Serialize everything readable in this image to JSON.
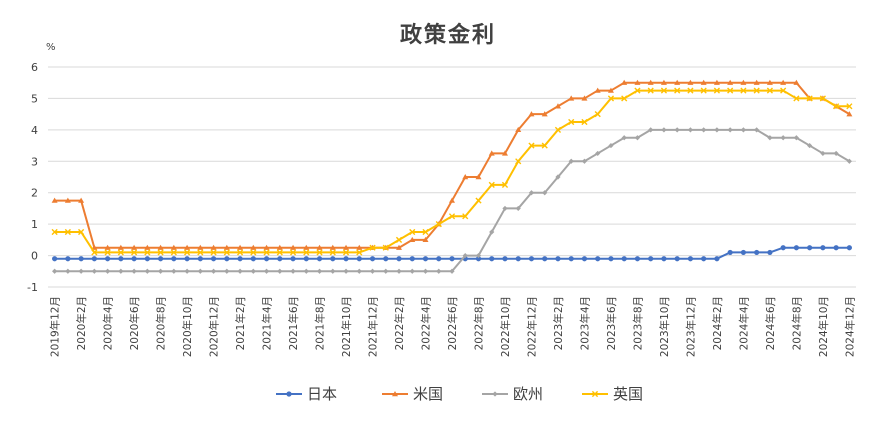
{
  "chart_data": {
    "type": "line",
    "title": "政策金利",
    "unit_label": "%",
    "ylim": [
      -1,
      6
    ],
    "yticks": [
      -1,
      0,
      1,
      2,
      3,
      4,
      5,
      6
    ],
    "grid": "horizontal",
    "legend_position": "bottom",
    "x": [
      "2019年12月",
      "2020年1月",
      "2020年2月",
      "2020年3月",
      "2020年4月",
      "2020年5月",
      "2020年6月",
      "2020年7月",
      "2020年8月",
      "2020年9月",
      "2020年10月",
      "2020年11月",
      "2020年12月",
      "2021年1月",
      "2021年2月",
      "2021年3月",
      "2021年4月",
      "2021年5月",
      "2021年6月",
      "2021年7月",
      "2021年8月",
      "2021年9月",
      "2021年10月",
      "2021年11月",
      "2021年12月",
      "2022年1月",
      "2022年2月",
      "2022年3月",
      "2022年4月",
      "2022年5月",
      "2022年6月",
      "2022年7月",
      "2022年8月",
      "2022年9月",
      "2022年10月",
      "2022年11月",
      "2022年12月",
      "2023年1月",
      "2023年2月",
      "2023年3月",
      "2023年4月",
      "2023年5月",
      "2023年6月",
      "2023年7月",
      "2023年8月",
      "2023年9月",
      "2023年10月",
      "2023年11月",
      "2023年12月",
      "2024年1月",
      "2024年2月",
      "2024年3月",
      "2024年4月",
      "2024年5月",
      "2024年6月",
      "2024年7月",
      "2024年8月",
      "2024年9月",
      "2024年10月",
      "2024年11月",
      "2024年12月"
    ],
    "xtick_labels": [
      "2019年12月",
      "2020年2月",
      "2020年4月",
      "2020年6月",
      "2020年8月",
      "2020年10月",
      "2020年12月",
      "2021年2月",
      "2021年4月",
      "2021年6月",
      "2021年8月",
      "2021年10月",
      "2021年12月",
      "2022年2月",
      "2022年4月",
      "2022年6月",
      "2022年8月",
      "2022年10月",
      "2022年12月",
      "2023年2月",
      "2023年4月",
      "2023年6月",
      "2023年8月",
      "2023年10月",
      "2023年12月",
      "2024年2月",
      "2024年4月",
      "2024年6月",
      "2024年8月",
      "2024年10月",
      "2024年12月"
    ],
    "series": [
      {
        "name": "日本",
        "color": "#4472c4",
        "marker": "circle",
        "values": [
          -0.1,
          -0.1,
          -0.1,
          -0.1,
          -0.1,
          -0.1,
          -0.1,
          -0.1,
          -0.1,
          -0.1,
          -0.1,
          -0.1,
          -0.1,
          -0.1,
          -0.1,
          -0.1,
          -0.1,
          -0.1,
          -0.1,
          -0.1,
          -0.1,
          -0.1,
          -0.1,
          -0.1,
          -0.1,
          -0.1,
          -0.1,
          -0.1,
          -0.1,
          -0.1,
          -0.1,
          -0.1,
          -0.1,
          -0.1,
          -0.1,
          -0.1,
          -0.1,
          -0.1,
          -0.1,
          -0.1,
          -0.1,
          -0.1,
          -0.1,
          -0.1,
          -0.1,
          -0.1,
          -0.1,
          -0.1,
          -0.1,
          -0.1,
          -0.1,
          0.1,
          0.1,
          0.1,
          0.1,
          0.25,
          0.25,
          0.25,
          0.25,
          0.25,
          0.25
        ]
      },
      {
        "name": "米国",
        "color": "#ed7d31",
        "marker": "triangle",
        "values": [
          1.75,
          1.75,
          1.75,
          0.25,
          0.25,
          0.25,
          0.25,
          0.25,
          0.25,
          0.25,
          0.25,
          0.25,
          0.25,
          0.25,
          0.25,
          0.25,
          0.25,
          0.25,
          0.25,
          0.25,
          0.25,
          0.25,
          0.25,
          0.25,
          0.25,
          0.25,
          0.25,
          0.5,
          0.5,
          1.0,
          1.75,
          2.5,
          2.5,
          3.25,
          3.25,
          4.0,
          4.5,
          4.5,
          4.75,
          5.0,
          5.0,
          5.25,
          5.25,
          5.5,
          5.5,
          5.5,
          5.5,
          5.5,
          5.5,
          5.5,
          5.5,
          5.5,
          5.5,
          5.5,
          5.5,
          5.5,
          5.5,
          5.0,
          5.0,
          4.75,
          4.5
        ]
      },
      {
        "name": "欧州",
        "color": "#a5a5a5",
        "marker": "diamond",
        "values": [
          -0.5,
          -0.5,
          -0.5,
          -0.5,
          -0.5,
          -0.5,
          -0.5,
          -0.5,
          -0.5,
          -0.5,
          -0.5,
          -0.5,
          -0.5,
          -0.5,
          -0.5,
          -0.5,
          -0.5,
          -0.5,
          -0.5,
          -0.5,
          -0.5,
          -0.5,
          -0.5,
          -0.5,
          -0.5,
          -0.5,
          -0.5,
          -0.5,
          -0.5,
          -0.5,
          -0.5,
          0.0,
          0.0,
          0.75,
          1.5,
          1.5,
          2.0,
          2.0,
          2.5,
          3.0,
          3.0,
          3.25,
          3.5,
          3.75,
          3.75,
          4.0,
          4.0,
          4.0,
          4.0,
          4.0,
          4.0,
          4.0,
          4.0,
          4.0,
          3.75,
          3.75,
          3.75,
          3.5,
          3.25,
          3.25,
          3.0
        ]
      },
      {
        "name": "英国",
        "color": "#ffc000",
        "marker": "x",
        "values": [
          0.75,
          0.75,
          0.75,
          0.1,
          0.1,
          0.1,
          0.1,
          0.1,
          0.1,
          0.1,
          0.1,
          0.1,
          0.1,
          0.1,
          0.1,
          0.1,
          0.1,
          0.1,
          0.1,
          0.1,
          0.1,
          0.1,
          0.1,
          0.1,
          0.25,
          0.25,
          0.5,
          0.75,
          0.75,
          1.0,
          1.25,
          1.25,
          1.75,
          2.25,
          2.25,
          3.0,
          3.5,
          3.5,
          4.0,
          4.25,
          4.25,
          4.5,
          5.0,
          5.0,
          5.25,
          5.25,
          5.25,
          5.25,
          5.25,
          5.25,
          5.25,
          5.25,
          5.25,
          5.25,
          5.25,
          5.25,
          5.0,
          5.0,
          5.0,
          4.75,
          4.75
        ]
      }
    ]
  }
}
